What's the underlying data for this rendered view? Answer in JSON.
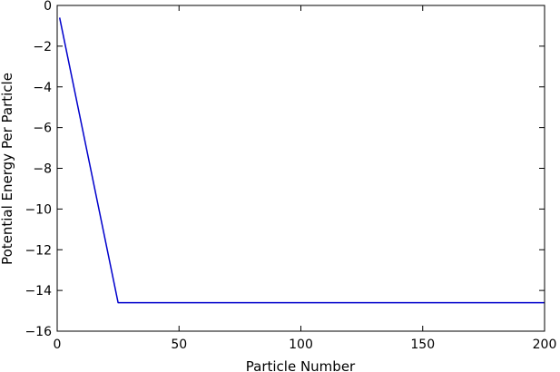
{
  "chart_data": {
    "type": "line",
    "title": "",
    "xlabel": "Particle Number",
    "ylabel": "Potential Energy Per Particle",
    "xlim": [
      0,
      200
    ],
    "ylim": [
      -16,
      0
    ],
    "xticks": [
      0,
      50,
      100,
      150,
      200
    ],
    "yticks": [
      0,
      -2,
      -4,
      -6,
      -8,
      -10,
      -12,
      -14,
      -16
    ],
    "xtick_labels": [
      "0",
      "50",
      "100",
      "150",
      "200"
    ],
    "ytick_labels": [
      "0",
      "−2",
      "−4",
      "−6",
      "−8",
      "−10",
      "−12",
      "−14",
      "−16"
    ],
    "grid": false,
    "legend": "none",
    "series": [
      {
        "color": "#0000cc",
        "x": [
          1,
          25,
          200
        ],
        "y": [
          -0.6,
          -14.6,
          -14.6
        ]
      }
    ]
  }
}
